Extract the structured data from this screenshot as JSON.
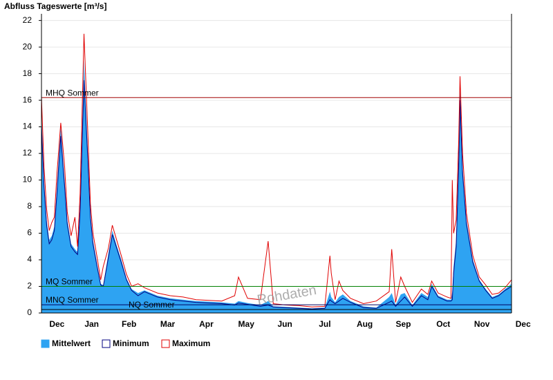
{
  "chart_data": {
    "type": "area-line",
    "title": "Abfluss Tageswerte [m³/s]",
    "watermark": "Rohdaten",
    "x": [
      0,
      2,
      4,
      6,
      8,
      10,
      12,
      15,
      18,
      20,
      23,
      26,
      28,
      30,
      33,
      36,
      38,
      40,
      43,
      46,
      48,
      52,
      55,
      58,
      62,
      66,
      70,
      75,
      80,
      85,
      90,
      100,
      110,
      120,
      130,
      140,
      150,
      153,
      160,
      170,
      176,
      180,
      190,
      200,
      210,
      220,
      224,
      225,
      228,
      231,
      234,
      240,
      250,
      260,
      270,
      272,
      275,
      279,
      282,
      288,
      295,
      300,
      303,
      308,
      315,
      318,
      319,
      320,
      322,
      324,
      325,
      327,
      330,
      335,
      340,
      345,
      350,
      355,
      360,
      365
    ],
    "series": [
      {
        "name": "Mittelwert",
        "color": "#2ea3f2",
        "style": "area",
        "values": [
          15,
          10,
          7,
          5.5,
          5.8,
          6.5,
          9.5,
          14,
          10,
          7,
          5.2,
          4.8,
          4.6,
          8,
          19,
          12,
          7.5,
          5.5,
          3.8,
          2.2,
          2.1,
          4.5,
          6.2,
          5.2,
          4,
          2.6,
          1.8,
          1.5,
          1.7,
          1.5,
          1.3,
          1.1,
          1.0,
          0.9,
          0.85,
          0.8,
          0.7,
          0.9,
          0.75,
          0.6,
          0.9,
          0.5,
          0.45,
          0.4,
          0.35,
          0.4,
          1.6,
          1.2,
          0.8,
          1.2,
          1.4,
          0.9,
          0.5,
          0.4,
          1.2,
          1.5,
          0.6,
          1.4,
          1.5,
          0.6,
          1.5,
          1.2,
          2.2,
          1.3,
          1.0,
          1.0,
          1.6,
          3.5,
          5.5,
          12,
          17,
          11,
          7,
          4,
          2.5,
          1.8,
          1.2,
          1.4,
          1.8,
          2.2
        ]
      },
      {
        "name": "Minimum",
        "color": "#000080",
        "style": "line",
        "values": [
          14,
          9.5,
          6.6,
          5.2,
          5.5,
          6.2,
          9,
          13.3,
          9.5,
          6.7,
          5,
          4.6,
          4.4,
          7.6,
          17.5,
          11.5,
          7.2,
          5.2,
          3.6,
          2.1,
          2,
          4.2,
          5.9,
          5,
          3.8,
          2.5,
          1.7,
          1.3,
          1.6,
          1.4,
          1.2,
          1,
          0.9,
          0.8,
          0.75,
          0.7,
          0.6,
          0.75,
          0.65,
          0.5,
          0.6,
          0.45,
          0.4,
          0.35,
          0.3,
          0.35,
          1.0,
          0.9,
          0.7,
          0.9,
          1.1,
          0.8,
          0.4,
          0.35,
          0.8,
          0.9,
          0.5,
          0.9,
          1.2,
          0.5,
          1.3,
          1.0,
          2.0,
          1.2,
          0.9,
          0.9,
          1.0,
          3.0,
          5.0,
          11,
          16,
          10.5,
          6.7,
          3.8,
          2.4,
          1.7,
          1.1,
          1.3,
          1.7,
          2.0
        ]
      },
      {
        "name": "Maximum",
        "color": "#e00000",
        "style": "line",
        "values": [
          16.2,
          11,
          7.8,
          6.2,
          6.8,
          7.2,
          10.5,
          14.3,
          11,
          7.6,
          5.8,
          7.2,
          5,
          9,
          21,
          13.5,
          8.2,
          6,
          4.3,
          2.5,
          3.5,
          4.9,
          6.6,
          5.6,
          4.3,
          2.9,
          2,
          2.2,
          1.9,
          1.7,
          1.5,
          1.3,
          1.2,
          1.0,
          0.95,
          0.9,
          1.3,
          2.7,
          1.1,
          1.0,
          5.4,
          0.7,
          0.6,
          0.55,
          0.45,
          0.5,
          4.3,
          3.0,
          1.0,
          2.4,
          1.7,
          1.1,
          0.7,
          0.9,
          1.6,
          4.8,
          0.8,
          2.7,
          2.0,
          0.8,
          1.8,
          1.4,
          2.4,
          1.5,
          1.2,
          1.1,
          10,
          6,
          7,
          13,
          17.8,
          12,
          7.5,
          4.3,
          2.7,
          2.1,
          1.4,
          1.5,
          1.9,
          2.5
        ]
      }
    ],
    "reference_lines": [
      {
        "label": "MHQ Sommer",
        "value": 16.2,
        "color": "#a00000"
      },
      {
        "label": "MQ Sommer",
        "value": 2.0,
        "color": "#008000"
      },
      {
        "label": "MNQ Sommer",
        "value": 0.62,
        "color": "#000060"
      },
      {
        "label": "NQ Sommer",
        "value": 0.26,
        "color": "#000000"
      }
    ],
    "xlim": [
      0,
      365
    ],
    "xticks": [
      {
        "value": 12,
        "label": "Dec"
      },
      {
        "value": 39,
        "label": "Jan"
      },
      {
        "value": 68,
        "label": "Feb"
      },
      {
        "value": 98,
        "label": "Mar"
      },
      {
        "value": 128,
        "label": "Apr"
      },
      {
        "value": 159,
        "label": "May"
      },
      {
        "value": 189,
        "label": "Jun"
      },
      {
        "value": 220,
        "label": "Jul"
      },
      {
        "value": 251,
        "label": "Aug"
      },
      {
        "value": 281,
        "label": "Sep"
      },
      {
        "value": 312,
        "label": "Oct"
      },
      {
        "value": 342,
        "label": "Nov"
      },
      {
        "value": 374,
        "label": "Dec"
      }
    ],
    "ylim": [
      0,
      22.5
    ],
    "yticks": [
      0,
      2,
      4,
      6,
      8,
      10,
      12,
      14,
      16,
      18,
      20,
      22
    ],
    "grid": true
  }
}
